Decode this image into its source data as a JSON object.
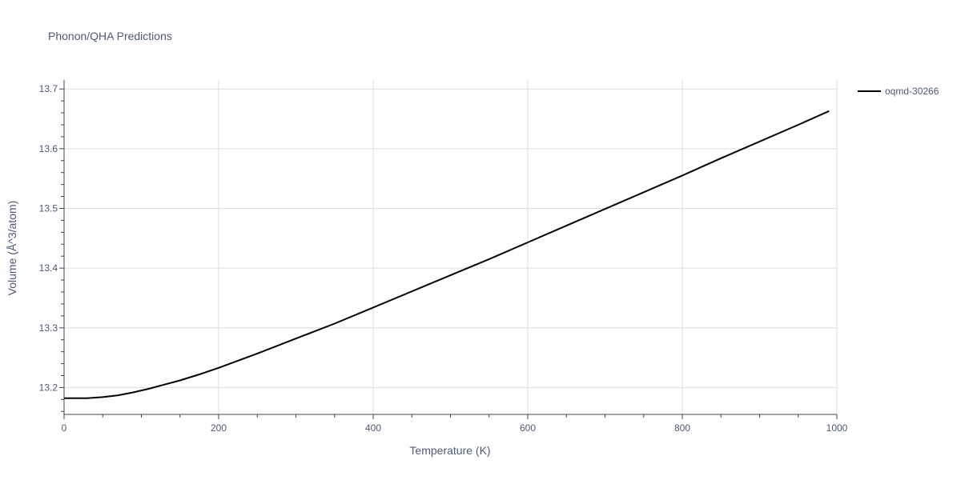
{
  "chart_data": {
    "type": "line",
    "title": "Phonon/QHA Predictions",
    "xlabel": "Temperature (K)",
    "ylabel": "Volume (Å^3/atom)",
    "xlim": [
      0,
      1000
    ],
    "ylim": [
      13.155,
      13.715
    ],
    "x_ticks": [
      0,
      200,
      400,
      600,
      800,
      1000
    ],
    "x_tick_labels": [
      "0",
      "200",
      "400",
      "600",
      "800",
      "1000"
    ],
    "y_ticks": [
      13.2,
      13.3,
      13.4,
      13.5,
      13.6,
      13.7
    ],
    "y_tick_labels": [
      "13.2",
      "13.3",
      "13.4",
      "13.5",
      "13.6",
      "13.7"
    ],
    "grid": true,
    "legend_position": "top-right",
    "series": [
      {
        "name": "oqmd-30266",
        "color": "#000000",
        "x": [
          0,
          10,
          30,
          50,
          70,
          90,
          110,
          130,
          150,
          175,
          200,
          250,
          300,
          350,
          400,
          450,
          500,
          550,
          600,
          650,
          700,
          750,
          800,
          850,
          900,
          950,
          990
        ],
        "y": [
          13.182,
          13.182,
          13.182,
          13.184,
          13.187,
          13.192,
          13.198,
          13.205,
          13.212,
          13.222,
          13.233,
          13.257,
          13.282,
          13.307,
          13.334,
          13.361,
          13.388,
          13.415,
          13.443,
          13.471,
          13.499,
          13.527,
          13.555,
          13.584,
          13.612,
          13.64,
          13.663
        ]
      }
    ]
  }
}
